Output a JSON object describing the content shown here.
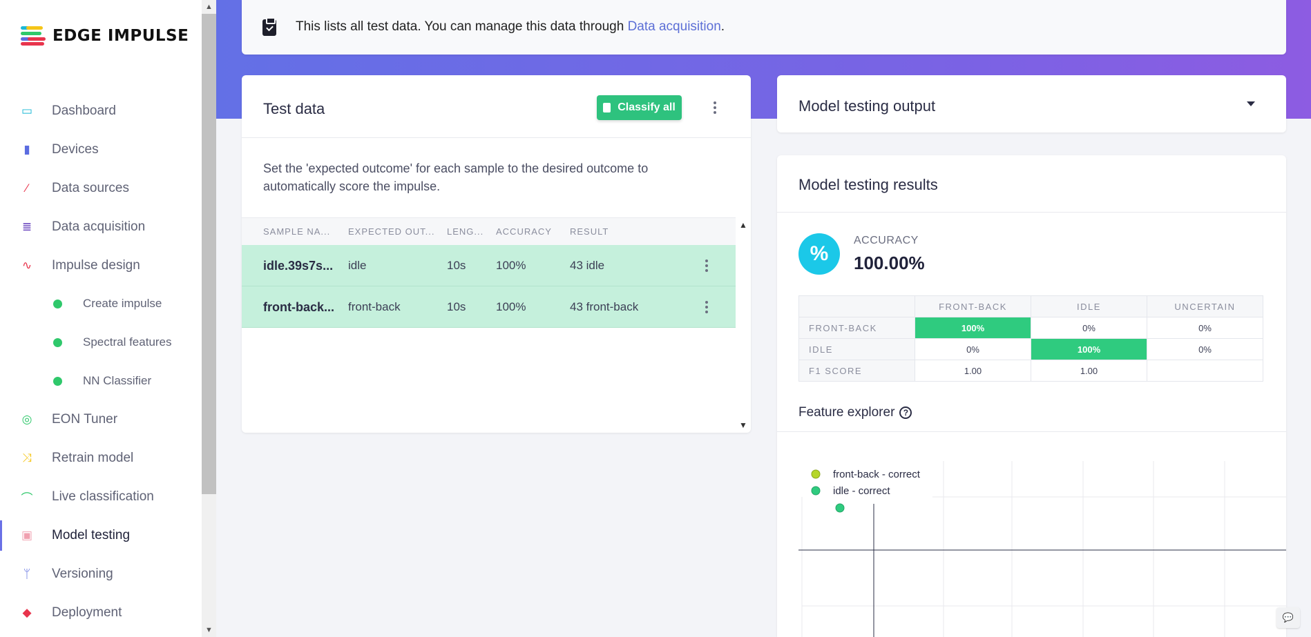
{
  "app": {
    "logo_text": "EDGE IMPULSE"
  },
  "sidebar": {
    "items": [
      {
        "label": "Dashboard",
        "icon": "monitor-icon",
        "color": "#1bb8d6"
      },
      {
        "label": "Devices",
        "icon": "chip-icon",
        "color": "#5b6ce0"
      },
      {
        "label": "Data sources",
        "icon": "magic-wand-icon",
        "color": "#e8344c"
      },
      {
        "label": "Data acquisition",
        "icon": "database-icon",
        "color": "#5b33b8"
      },
      {
        "label": "Impulse design",
        "icon": "pulse-icon",
        "color": "#e8344c"
      },
      {
        "label": "Create impulse",
        "icon": "dot-icon",
        "color": "#2fc86b"
      },
      {
        "label": "Spectral features",
        "icon": "dot-icon",
        "color": "#2fc86b"
      },
      {
        "label": "NN Classifier",
        "icon": "dot-icon",
        "color": "#2fc86b"
      },
      {
        "label": "EON Tuner",
        "icon": "compass-icon",
        "color": "#2fc86b"
      },
      {
        "label": "Retrain model",
        "icon": "shuffle-icon",
        "color": "#f5c518"
      },
      {
        "label": "Live classification",
        "icon": "broadcast-icon",
        "color": "#2fc86b"
      },
      {
        "label": "Model testing",
        "icon": "clipboard-check-icon",
        "color": "#f0a0b0"
      },
      {
        "label": "Versioning",
        "icon": "branch-icon",
        "color": "#5b6ce0"
      },
      {
        "label": "Deployment",
        "icon": "cube-icon",
        "color": "#e8344c"
      }
    ]
  },
  "banner": {
    "text": "This lists all test data. You can manage this data through ",
    "link": "Data acquisition",
    "suffix": "."
  },
  "test_data": {
    "title": "Test data",
    "classify_label": "Classify all",
    "description": "Set the 'expected outcome' for each sample to the desired outcome to automatically score the impulse.",
    "columns": [
      "SAMPLE NA...",
      "EXPECTED OUT...",
      "LENG...",
      "ACCURACY",
      "RESULT"
    ],
    "rows": [
      {
        "sample": "idle.39s7s...",
        "expected": "idle",
        "length": "10s",
        "accuracy": "100%",
        "result": "43 idle"
      },
      {
        "sample": "front-back...",
        "expected": "front-back",
        "length": "10s",
        "accuracy": "100%",
        "result": "43 front-back"
      }
    ]
  },
  "output": {
    "title": "Model testing output"
  },
  "results": {
    "title": "Model testing results",
    "accuracy_label": "ACCURACY",
    "accuracy_value": "100.00%",
    "confusion": {
      "headers": [
        "",
        "FRONT-BACK",
        "IDLE",
        "UNCERTAIN"
      ],
      "rows": [
        [
          "FRONT-BACK",
          "100%",
          "0%",
          "0%"
        ],
        [
          "IDLE",
          "0%",
          "100%",
          "0%"
        ],
        [
          "F1 SCORE",
          "1.00",
          "1.00",
          ""
        ]
      ],
      "highlight_color": "#2fcb7f"
    },
    "feature_explorer_title": "Feature explorer",
    "legend": [
      {
        "label": "front-back - correct",
        "color": "#b5d62a"
      },
      {
        "label": "idle - correct",
        "color": "#2fcb7f"
      }
    ]
  },
  "colors": {
    "accent": "#6370e6",
    "success": "#2ec27e",
    "link": "#5c6fd6"
  }
}
